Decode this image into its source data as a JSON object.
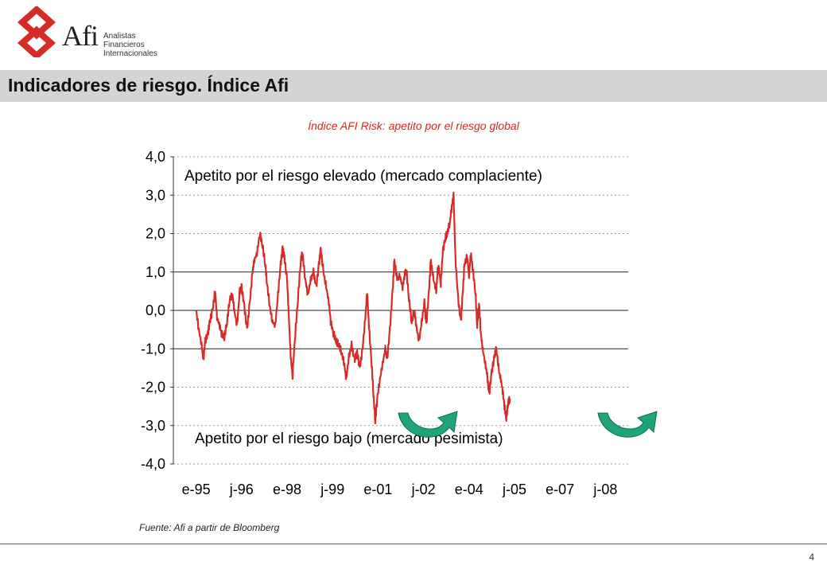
{
  "logo": {
    "brand": "Afi",
    "lines": [
      "Analistas",
      "Financieros",
      "Internacionales"
    ],
    "color": "#d62b27"
  },
  "header": {
    "title": "Indicadores de riesgo. Índice Afi"
  },
  "chart_data": {
    "type": "line",
    "title": "Índice AFI Risk: apetito por el riesgo global",
    "ylim": [
      -4.0,
      4.0
    ],
    "yticks": [
      "4,0",
      "3,0",
      "2,0",
      "1,0",
      "0,0",
      "-1,0",
      "-2,0",
      "-3,0",
      "-4,0"
    ],
    "ytick_values": [
      4,
      3,
      2,
      1,
      0,
      -1,
      -2,
      -3,
      -4
    ],
    "xticks": [
      "e-95",
      "j-96",
      "e-98",
      "j-99",
      "e-01",
      "j-02",
      "e-04",
      "j-05",
      "e-07",
      "j-08"
    ],
    "gridlines": [
      1,
      0,
      -1
    ],
    "annotation_top": "Apetito por el riesgo elevado (mercado complaciente)",
    "annotation_bottom": "Apetito por el riesgo bajo (mercado pesimista)",
    "series_color": "#d62b27",
    "arrow_color": "#1fa37a",
    "series": [
      {
        "points": [
          [
            0.0,
            0.0
          ],
          [
            0.06,
            -0.5
          ],
          [
            0.12,
            -0.9
          ],
          [
            0.16,
            -1.3
          ],
          [
            0.2,
            -0.8
          ],
          [
            0.26,
            -0.6
          ],
          [
            0.3,
            -0.3
          ],
          [
            0.36,
            0.0
          ],
          [
            0.42,
            0.5
          ],
          [
            0.46,
            -0.2
          ],
          [
            0.52,
            -0.4
          ],
          [
            0.56,
            -0.6
          ],
          [
            0.62,
            -0.7
          ],
          [
            0.68,
            -0.3
          ],
          [
            0.74,
            0.3
          ],
          [
            0.8,
            0.4
          ],
          [
            0.84,
            0.0
          ],
          [
            0.9,
            -0.4
          ],
          [
            0.96,
            0.5
          ],
          [
            1.0,
            0.6
          ],
          [
            1.06,
            0.1
          ],
          [
            1.12,
            -0.5
          ],
          [
            1.18,
            0.2
          ],
          [
            1.24,
            1.0
          ],
          [
            1.28,
            1.3
          ],
          [
            1.34,
            1.5
          ],
          [
            1.4,
            2.0
          ],
          [
            1.46,
            1.7
          ],
          [
            1.52,
            1.2
          ],
          [
            1.56,
            0.7
          ],
          [
            1.62,
            0.1
          ],
          [
            1.68,
            -0.3
          ],
          [
            1.74,
            -0.4
          ],
          [
            1.8,
            0.4
          ],
          [
            1.86,
            1.2
          ],
          [
            1.9,
            1.6
          ],
          [
            1.94,
            1.4
          ],
          [
            2.0,
            0.8
          ],
          [
            2.04,
            -0.2
          ],
          [
            2.08,
            -1.2
          ],
          [
            2.12,
            -1.7
          ],
          [
            2.18,
            -0.6
          ],
          [
            2.24,
            0.3
          ],
          [
            2.3,
            1.3
          ],
          [
            2.34,
            1.5
          ],
          [
            2.4,
            0.8
          ],
          [
            2.46,
            0.4
          ],
          [
            2.52,
            0.8
          ],
          [
            2.58,
            1.0
          ],
          [
            2.64,
            0.6
          ],
          [
            2.7,
            1.2
          ],
          [
            2.74,
            1.6
          ],
          [
            2.8,
            1.0
          ],
          [
            2.86,
            0.6
          ],
          [
            2.92,
            0.2
          ],
          [
            2.96,
            -0.3
          ],
          [
            3.02,
            -0.6
          ],
          [
            3.08,
            -0.8
          ],
          [
            3.14,
            -0.9
          ],
          [
            3.2,
            -1.1
          ],
          [
            3.26,
            -1.4
          ],
          [
            3.3,
            -1.8
          ],
          [
            3.36,
            -1.2
          ],
          [
            3.42,
            -0.9
          ],
          [
            3.48,
            -1.3
          ],
          [
            3.54,
            -1.1
          ],
          [
            3.6,
            -1.5
          ],
          [
            3.66,
            -1.0
          ],
          [
            3.72,
            -0.2
          ],
          [
            3.76,
            0.5
          ],
          [
            3.8,
            -0.4
          ],
          [
            3.86,
            -1.4
          ],
          [
            3.9,
            -2.2
          ],
          [
            3.94,
            -2.9
          ],
          [
            3.98,
            -2.3
          ],
          [
            4.04,
            -1.8
          ],
          [
            4.1,
            -1.4
          ],
          [
            4.16,
            -1.0
          ],
          [
            4.2,
            -1.3
          ],
          [
            4.26,
            -0.5
          ],
          [
            4.32,
            0.5
          ],
          [
            4.36,
            1.3
          ],
          [
            4.42,
            0.8
          ],
          [
            4.48,
            0.9
          ],
          [
            4.54,
            0.6
          ],
          [
            4.58,
            0.9
          ],
          [
            4.62,
            1.1
          ],
          [
            4.68,
            0.3
          ],
          [
            4.74,
            -0.3
          ],
          [
            4.8,
            0.0
          ],
          [
            4.84,
            -0.4
          ],
          [
            4.9,
            -0.8
          ],
          [
            4.96,
            -0.3
          ],
          [
            5.02,
            0.2
          ],
          [
            5.06,
            -0.4
          ],
          [
            5.12,
            0.5
          ],
          [
            5.16,
            1.3
          ],
          [
            5.22,
            0.8
          ],
          [
            5.28,
            0.5
          ],
          [
            5.32,
            1.2
          ],
          [
            5.38,
            0.7
          ],
          [
            5.42,
            1.5
          ],
          [
            5.48,
            1.9
          ],
          [
            5.52,
            2.0
          ],
          [
            5.58,
            2.3
          ],
          [
            5.62,
            2.7
          ],
          [
            5.66,
            3.0
          ],
          [
            5.7,
            1.4
          ],
          [
            5.76,
            0.3
          ],
          [
            5.82,
            -0.3
          ],
          [
            5.86,
            0.4
          ],
          [
            5.9,
            1.2
          ],
          [
            5.96,
            1.4
          ],
          [
            6.0,
            0.9
          ],
          [
            6.04,
            1.5
          ],
          [
            6.08,
            1.1
          ],
          [
            6.14,
            0.5
          ],
          [
            6.18,
            -0.4
          ],
          [
            6.22,
            0.2
          ],
          [
            6.26,
            -0.6
          ],
          [
            6.3,
            -1.0
          ],
          [
            6.36,
            -1.4
          ],
          [
            6.4,
            -1.7
          ],
          [
            6.44,
            -2.2
          ],
          [
            6.5,
            -1.6
          ],
          [
            6.56,
            -1.2
          ],
          [
            6.6,
            -1.0
          ],
          [
            6.66,
            -1.6
          ],
          [
            6.7,
            -1.8
          ],
          [
            6.74,
            -2.1
          ],
          [
            6.78,
            -2.5
          ],
          [
            6.82,
            -2.8
          ],
          [
            6.86,
            -2.4
          ],
          [
            6.9,
            -2.3
          ]
        ]
      }
    ]
  },
  "footer": {
    "source": "Fuente: Afi a partir de Bloomberg",
    "page": "4"
  }
}
